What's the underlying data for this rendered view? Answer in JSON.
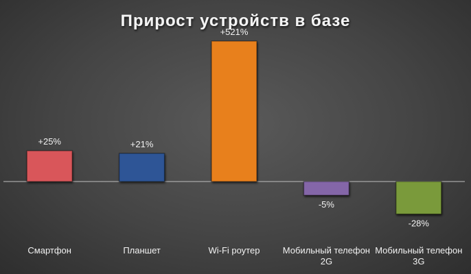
{
  "chart_data": {
    "type": "bar",
    "title": "Прирост устройств в базе",
    "categories": [
      "Смартфон",
      "Планшет",
      "Wi-Fi роутер",
      "Мобильный телефон 2G",
      "Мобильный телефон 3G"
    ],
    "values": [
      25,
      21,
      521,
      -5,
      -28
    ],
    "value_labels": [
      "+25%",
      "+21%",
      "+521%",
      "-5%",
      "-28%"
    ],
    "colors": [
      "#d9575a",
      "#2e5596",
      "#e8801f",
      "#8466a8",
      "#7a9a3a"
    ],
    "scale": "sqrt"
  }
}
